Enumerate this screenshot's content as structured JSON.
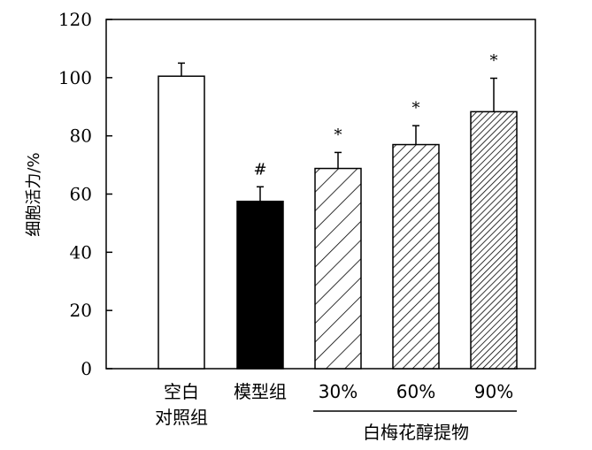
{
  "chart_data": {
    "type": "bar",
    "ylabel": "细胞活力/%",
    "ylim": [
      0,
      120
    ],
    "yticks": [
      0,
      20,
      40,
      60,
      80,
      100,
      120
    ],
    "categories": [
      {
        "label_lines": [
          "空白",
          "对照组"
        ],
        "value": 100.5,
        "error": 4.5,
        "annotation": "",
        "fill": "white"
      },
      {
        "label_lines": [
          "模型组"
        ],
        "value": 57.5,
        "error": 5.0,
        "annotation": "#",
        "fill": "black"
      },
      {
        "label_lines": [
          "30%"
        ],
        "value": 68.8,
        "error": 5.5,
        "annotation": "*",
        "fill": "hatch-sparse"
      },
      {
        "label_lines": [
          "60%"
        ],
        "value": 77.0,
        "error": 6.5,
        "annotation": "*",
        "fill": "hatch-medium"
      },
      {
        "label_lines": [
          "90%"
        ],
        "value": 88.3,
        "error": 11.5,
        "annotation": "*",
        "fill": "hatch-dense"
      }
    ],
    "group_label": {
      "text": "白梅花醇提物",
      "spans": [
        2,
        4
      ]
    }
  }
}
